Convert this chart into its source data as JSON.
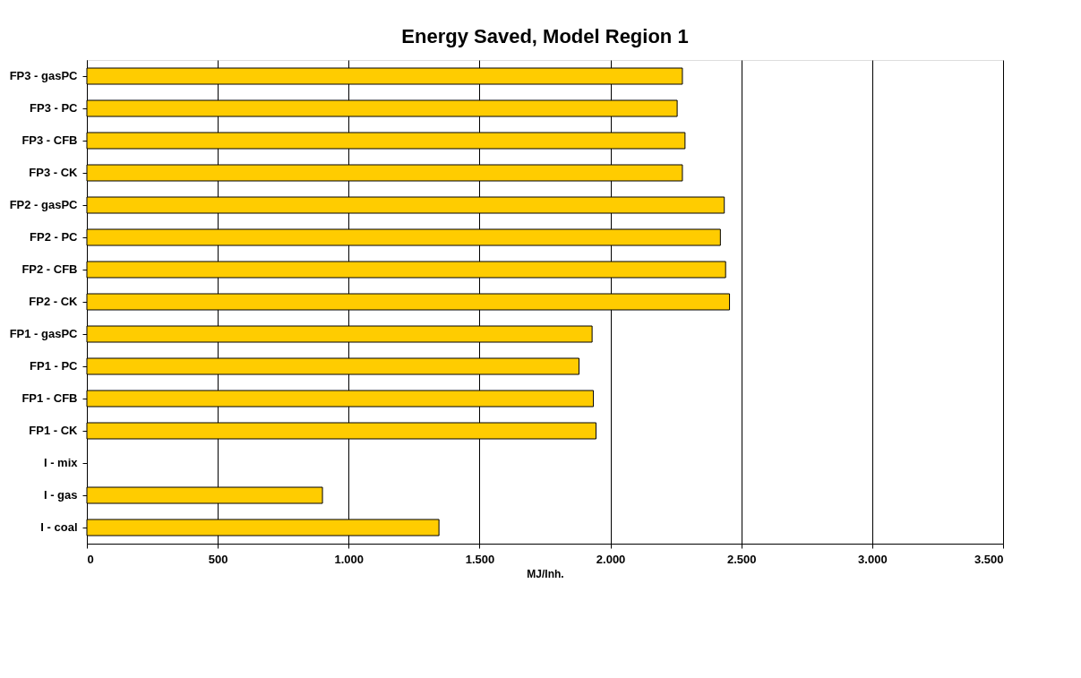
{
  "chart_data": {
    "type": "bar",
    "orientation": "horizontal",
    "title": "Energy Saved, Model Region 1",
    "xlabel": "MJ/Inh.",
    "categories": [
      "FP3 - gasPC",
      "FP3 - PC",
      "FP3 - CFB",
      "FP3 - CK",
      "FP2 - gasPC",
      "FP2 - PC",
      "FP2 - CFB",
      "FP2 - CK",
      "FP1 - gasPC",
      "FP1 - PC",
      "FP1 - CFB",
      "FP1 - CK",
      "I - mix",
      "I - gas",
      "I - coal"
    ],
    "values": [
      2275,
      2255,
      2285,
      2275,
      2435,
      2420,
      2440,
      2455,
      1930,
      1880,
      1935,
      1945,
      null,
      900,
      1345
    ],
    "color": "#ffcc00",
    "xlim": [
      0,
      3500
    ],
    "xticks": [
      0,
      500,
      {
        "value": 1000,
        "label": "1.000"
      },
      {
        "value": 1500,
        "label": "1.500"
      },
      {
        "value": 2000,
        "label": "2.000"
      },
      {
        "value": 2500,
        "label": "2.500"
      },
      {
        "value": 3000,
        "label": "3.000"
      },
      {
        "value": 3500,
        "label": "3.500"
      }
    ],
    "grid": "x"
  }
}
